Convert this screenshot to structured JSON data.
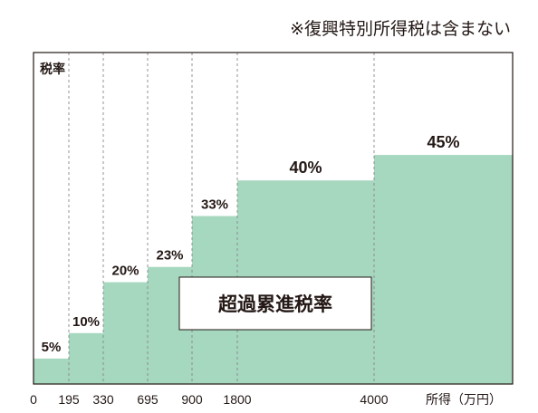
{
  "note": "※復興特別所得税は含まない",
  "chart_data": {
    "type": "area",
    "subtype": "step",
    "ylabel": "税率",
    "xlabel": "所得（万円）",
    "annotation": "超過累進税率",
    "x_tick_labels": [
      "0",
      "195",
      "330",
      "695",
      "900",
      "1800",
      "4000"
    ],
    "brackets": [
      {
        "from": "0",
        "to": "195",
        "rate": 5,
        "label": "5%"
      },
      {
        "from": "195",
        "to": "330",
        "rate": 10,
        "label": "10%"
      },
      {
        "from": "330",
        "to": "695",
        "rate": 20,
        "label": "20%"
      },
      {
        "from": "695",
        "to": "900",
        "rate": 23,
        "label": "23%"
      },
      {
        "from": "900",
        "to": "1800",
        "rate": 33,
        "label": "33%"
      },
      {
        "from": "1800",
        "to": "4000",
        "rate": 40,
        "label": "40%"
      },
      {
        "from": "4000",
        "to": "",
        "rate": 45,
        "label": "45%"
      }
    ],
    "ylim": [
      0,
      60
    ],
    "grid": "vertical-dashed",
    "colors": {
      "fill": "#a6d7bf",
      "frame": "#231815",
      "grid": "#888888"
    }
  }
}
